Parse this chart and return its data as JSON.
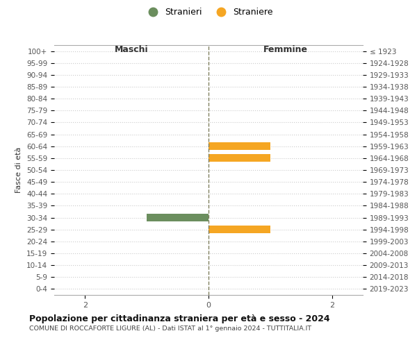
{
  "age_groups": [
    "100+",
    "95-99",
    "90-94",
    "85-89",
    "80-84",
    "75-79",
    "70-74",
    "65-69",
    "60-64",
    "55-59",
    "50-54",
    "45-49",
    "40-44",
    "35-39",
    "30-34",
    "25-29",
    "20-24",
    "15-19",
    "10-14",
    "5-9",
    "0-4"
  ],
  "birth_years": [
    "≤ 1923",
    "1924-1928",
    "1929-1933",
    "1934-1938",
    "1939-1943",
    "1944-1948",
    "1949-1953",
    "1954-1958",
    "1959-1963",
    "1964-1968",
    "1969-1973",
    "1974-1978",
    "1979-1983",
    "1984-1988",
    "1989-1993",
    "1994-1998",
    "1999-2003",
    "2004-2008",
    "2009-2013",
    "2014-2018",
    "2019-2023"
  ],
  "males": [
    0,
    0,
    0,
    0,
    0,
    0,
    0,
    0,
    0,
    0,
    0,
    0,
    0,
    0,
    1,
    0,
    0,
    0,
    0,
    0,
    0
  ],
  "females": [
    0,
    0,
    0,
    0,
    0,
    0,
    0,
    0,
    1,
    1,
    0,
    0,
    0,
    0,
    0,
    1,
    0,
    0,
    0,
    0,
    0
  ],
  "male_color": "#6b8e5e",
  "female_color": "#f5a623",
  "background_color": "#ffffff",
  "grid_color": "#cccccc",
  "center_line_color": "#808060",
  "title": "Popolazione per cittadinanza straniera per età e sesso - 2024",
  "subtitle": "COMUNE DI ROCCAFORTE LIGURE (AL) - Dati ISTAT al 1° gennaio 2024 - TUTTITALIA.IT",
  "ylabel_left": "Fasce di età",
  "header_left": "Maschi",
  "header_right": "Femmine",
  "legend_stranieri": "Stranieri",
  "legend_straniere": "Straniere",
  "xlim": 2.5,
  "xticks": [
    -2,
    0,
    2
  ],
  "xticklabels": [
    "2",
    "0",
    "2"
  ]
}
